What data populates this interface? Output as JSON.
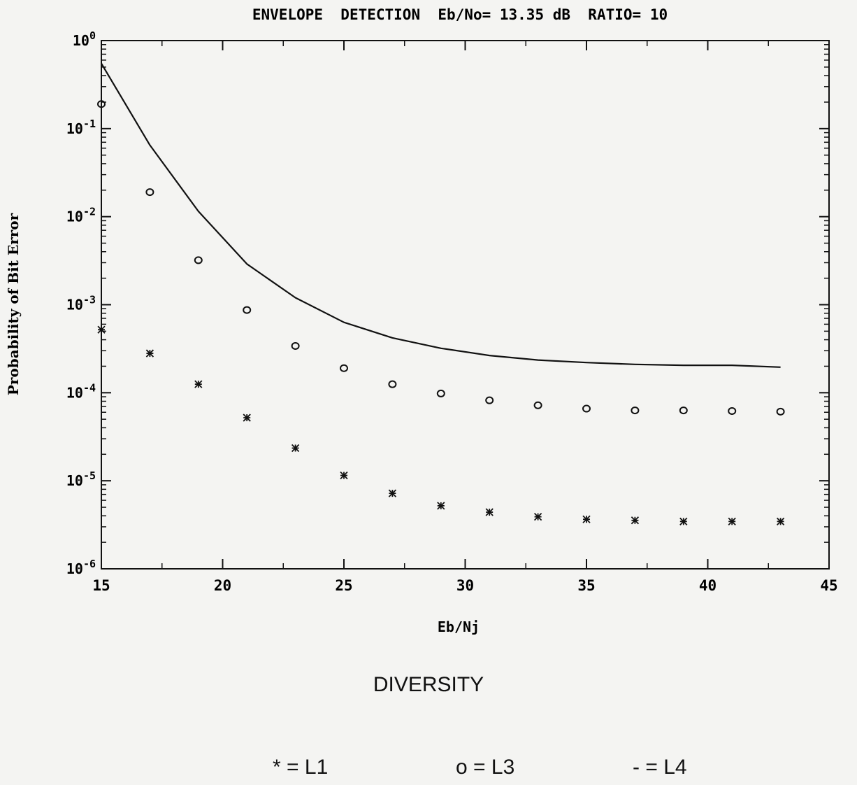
{
  "chart_data": {
    "type": "scatter",
    "title": "ENVELOPE  DETECTION  Eb/No= 13.35 dB  RATIO= 10",
    "xlabel": "Eb/Nj",
    "ylabel": "Probability of Bit Error",
    "xlim": [
      15,
      45
    ],
    "ylim": [
      1e-06,
      1
    ],
    "yscale": "log",
    "x_ticks": [
      "15",
      "20",
      "25",
      "30",
      "35",
      "40",
      "45"
    ],
    "y_ticks": [
      {
        "base": "10",
        "exp": "0"
      },
      {
        "base": "10",
        "exp": "-1"
      },
      {
        "base": "10",
        "exp": "-2"
      },
      {
        "base": "10",
        "exp": "-3"
      },
      {
        "base": "10",
        "exp": "-4"
      },
      {
        "base": "10",
        "exp": "-5"
      },
      {
        "base": "10",
        "exp": "-6"
      }
    ],
    "grid": false,
    "series": [
      {
        "name": "L1",
        "marker": "*",
        "style": "markers",
        "x": [
          15,
          17,
          19,
          21,
          23,
          25,
          27,
          29,
          31,
          33,
          35,
          37,
          39,
          41,
          43
        ],
        "y": [
          0.00052,
          0.00028,
          0.000125,
          5.2e-05,
          2.35e-05,
          1.15e-05,
          7.2e-06,
          5.2e-06,
          4.4e-06,
          3.9e-06,
          3.65e-06,
          3.55e-06,
          3.45e-06,
          3.45e-06,
          3.45e-06
        ]
      },
      {
        "name": "L3",
        "marker": "o",
        "style": "markers",
        "x": [
          15,
          17,
          19,
          21,
          23,
          25,
          27,
          29,
          31,
          33,
          35,
          37,
          39,
          41,
          43
        ],
        "y": [
          0.19,
          0.019,
          0.0032,
          0.00087,
          0.00034,
          0.00019,
          0.000125,
          9.8e-05,
          8.2e-05,
          7.2e-05,
          6.6e-05,
          6.3e-05,
          6.3e-05,
          6.2e-05,
          6.1e-05
        ]
      },
      {
        "name": "L4",
        "marker": "-",
        "style": "line",
        "x": [
          15,
          17,
          19,
          21,
          23,
          25,
          27,
          29,
          31,
          33,
          35,
          37,
          39,
          41,
          43
        ],
        "y": [
          0.55,
          0.065,
          0.0115,
          0.0029,
          0.0012,
          0.00063,
          0.00042,
          0.00032,
          0.000265,
          0.000235,
          0.00022,
          0.00021,
          0.000205,
          0.000205,
          0.000195
        ]
      }
    ]
  },
  "legend": {
    "title": "DIVERSITY",
    "entries": [
      {
        "symbol": "*",
        "label": "L1"
      },
      {
        "symbol": "o",
        "label": "L3"
      },
      {
        "symbol": "-",
        "label": "L4"
      }
    ]
  },
  "colors": {
    "ink": "#111111",
    "background": "#f4f4f2"
  }
}
